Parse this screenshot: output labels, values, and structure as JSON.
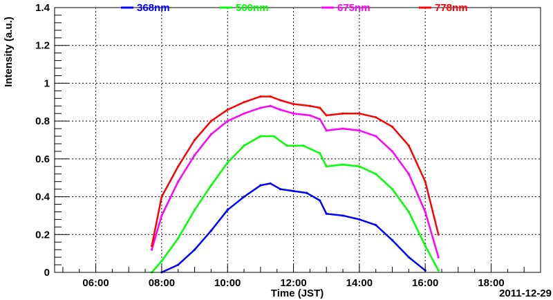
{
  "chart_data": {
    "type": "line",
    "xlabel": "Time (JST)",
    "ylabel": "Intensity (a.u.)",
    "date_label": "2011-12-29",
    "xlim": [
      4.75,
      19.5
    ],
    "ylim": [
      0,
      1.4
    ],
    "x_ticks": [
      "06:00",
      "08:00",
      "10:00",
      "12:00",
      "14:00",
      "16:00",
      "18:00"
    ],
    "y_ticks": [
      "0",
      "0.2",
      "0.4",
      "0.6",
      "0.8",
      "1",
      "1.2",
      "1.4"
    ],
    "grid": true,
    "legend_placement": "top",
    "x_unit": "hour",
    "series": [
      {
        "name": "368nm",
        "color": "#0000ff",
        "x": [
          8.0,
          8.5,
          9.0,
          9.5,
          10.0,
          10.5,
          11.0,
          11.3,
          11.6,
          12.0,
          12.4,
          12.8,
          13.0,
          13.5,
          14.0,
          14.5,
          15.0,
          15.5,
          16.0
        ],
        "y": [
          0.0,
          0.04,
          0.12,
          0.22,
          0.33,
          0.4,
          0.46,
          0.47,
          0.44,
          0.43,
          0.42,
          0.38,
          0.31,
          0.3,
          0.28,
          0.25,
          0.17,
          0.08,
          0.01
        ]
      },
      {
        "name": "500nm",
        "color": "#00ff00",
        "x": [
          7.7,
          8.0,
          8.5,
          9.0,
          9.5,
          10.0,
          10.5,
          11.0,
          11.4,
          11.8,
          12.3,
          12.8,
          13.0,
          13.5,
          14.0,
          14.5,
          15.0,
          15.5,
          16.0,
          16.4
        ],
        "y": [
          0.0,
          0.06,
          0.18,
          0.33,
          0.46,
          0.58,
          0.67,
          0.72,
          0.72,
          0.67,
          0.67,
          0.63,
          0.56,
          0.57,
          0.56,
          0.52,
          0.44,
          0.32,
          0.14,
          0.01
        ]
      },
      {
        "name": "675nm",
        "color": "#ff00ff",
        "x": [
          7.7,
          8.0,
          8.5,
          9.0,
          9.5,
          10.0,
          10.5,
          11.0,
          11.3,
          11.6,
          12.0,
          12.5,
          12.8,
          13.0,
          13.5,
          14.0,
          14.5,
          15.0,
          15.5,
          16.0,
          16.4
        ],
        "y": [
          0.12,
          0.3,
          0.48,
          0.62,
          0.73,
          0.8,
          0.84,
          0.87,
          0.88,
          0.86,
          0.84,
          0.83,
          0.81,
          0.75,
          0.76,
          0.75,
          0.72,
          0.64,
          0.52,
          0.32,
          0.08
        ]
      },
      {
        "name": "778nm",
        "color": "#ff0000",
        "x": [
          7.7,
          8.0,
          8.5,
          9.0,
          9.5,
          10.0,
          10.5,
          11.0,
          11.3,
          11.6,
          12.0,
          12.5,
          12.8,
          13.0,
          13.5,
          14.0,
          14.5,
          15.0,
          15.5,
          16.0,
          16.4
        ],
        "y": [
          0.14,
          0.4,
          0.56,
          0.7,
          0.8,
          0.86,
          0.9,
          0.93,
          0.93,
          0.91,
          0.89,
          0.88,
          0.87,
          0.83,
          0.84,
          0.84,
          0.82,
          0.77,
          0.67,
          0.48,
          0.2
        ]
      }
    ]
  }
}
